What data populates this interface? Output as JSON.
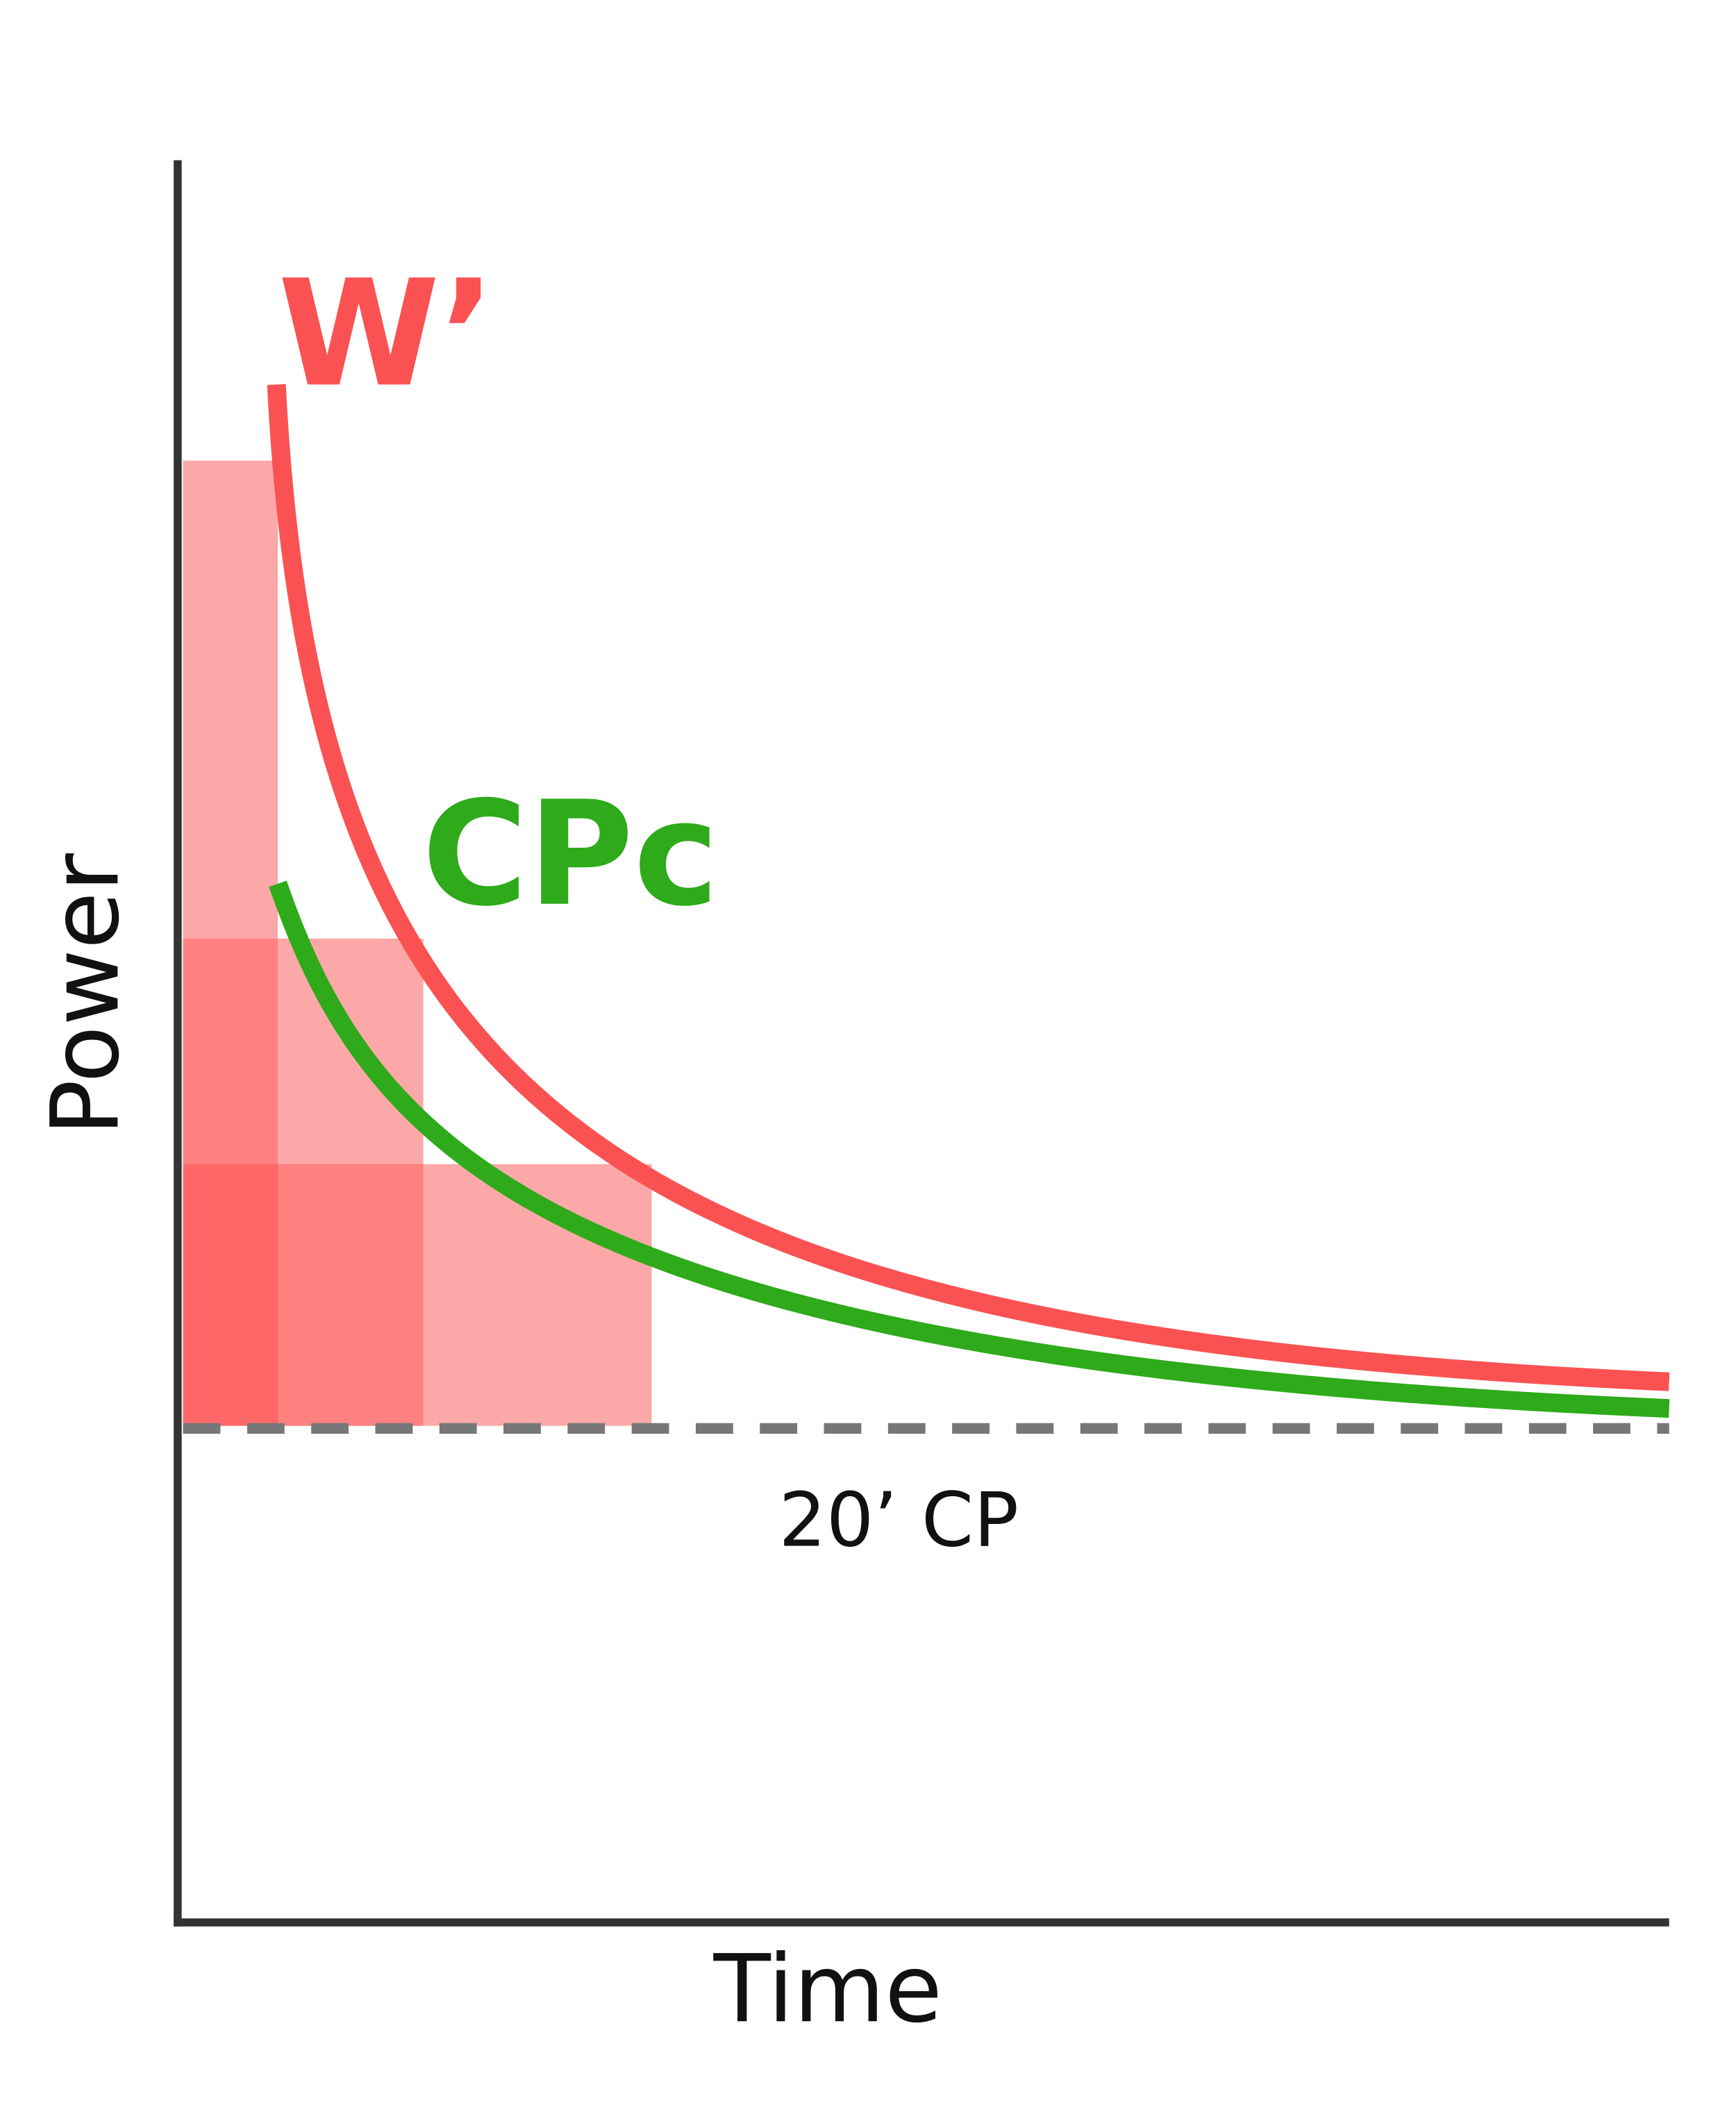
{
  "labels": {
    "w_prime": "W’",
    "cpc": "CPc",
    "cp": "20’ CP"
  },
  "axes": {
    "y": "Power",
    "x": "Time"
  }
}
